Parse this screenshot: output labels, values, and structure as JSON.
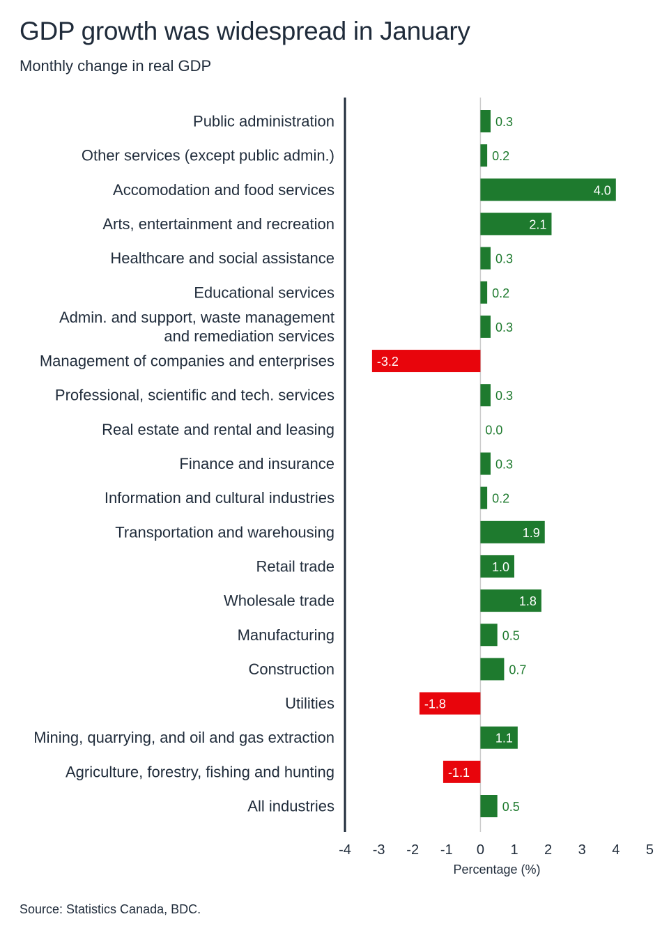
{
  "chart_data": {
    "type": "bar",
    "orientation": "horizontal",
    "title": "GDP growth was widespread in January",
    "subtitle": "Monthly change in real GDP",
    "xlabel": "Percentage (%)",
    "ylabel": "",
    "xlim": [
      -4,
      5
    ],
    "xticks": [
      -4,
      -3,
      -2,
      -1,
      0,
      1,
      2,
      3,
      4,
      5
    ],
    "grid": false,
    "categories": [
      [
        "Public administration"
      ],
      [
        "Other services (except public admin.)"
      ],
      [
        "Accomodation and food services"
      ],
      [
        "Arts, entertainment and recreation"
      ],
      [
        "Healthcare and social assistance"
      ],
      [
        "Educational services"
      ],
      [
        "Admin. and support, waste management",
        "and remediation services"
      ],
      [
        "Management of companies and enterprises"
      ],
      [
        "Professional, scientific and tech. services"
      ],
      [
        "Real estate and rental and leasing"
      ],
      [
        "Finance and insurance"
      ],
      [
        "Information and cultural industries"
      ],
      [
        "Transportation and warehousing"
      ],
      [
        "Retail trade"
      ],
      [
        "Wholesale trade"
      ],
      [
        "Manufacturing"
      ],
      [
        "Construction"
      ],
      [
        "Utilities"
      ],
      [
        "Mining, quarrying, and oil and gas extraction"
      ],
      [
        "Agriculture, forestry, fishing and hunting"
      ],
      [
        "All industries"
      ]
    ],
    "values": [
      0.3,
      0.2,
      4.0,
      2.1,
      0.3,
      0.2,
      0.3,
      -3.2,
      0.3,
      0.0,
      0.3,
      0.2,
      1.9,
      1.0,
      1.8,
      0.5,
      0.7,
      -1.8,
      1.1,
      -1.1,
      0.5
    ],
    "value_labels": [
      "0.3",
      "0.2",
      "4.0",
      "2.1",
      "0.3",
      "0.2",
      "0.3",
      "-3.2",
      "0.3",
      "0.0",
      "0.3",
      "0.2",
      "1.9",
      "1.0",
      "1.8",
      "0.5",
      "0.7",
      "-1.8",
      "1.1",
      "-1.1",
      "0.5"
    ],
    "colors": {
      "positive": "#1e7a2e",
      "negative": "#e8050c",
      "positive_label_outside": "#1e7a2e",
      "label_inside": "#ffffff",
      "axis": "#1f2b3a",
      "zero_line": "#cccccc"
    },
    "source": "Source: Statistics Canada, BDC."
  }
}
